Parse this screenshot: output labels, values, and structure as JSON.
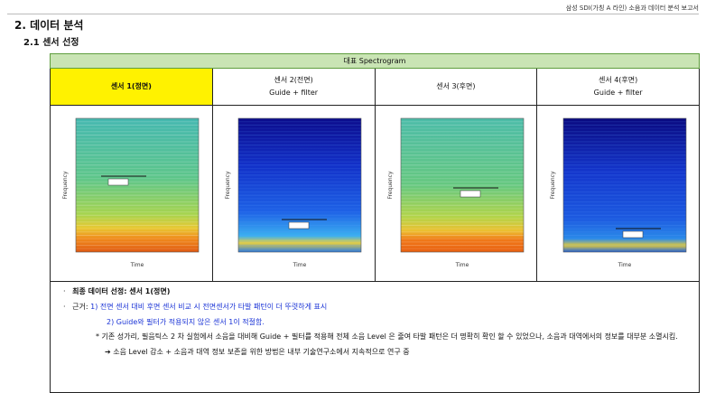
{
  "header": {
    "note": "삼성 SDI(가칭 A 라인) 소음과 데이터 분석 보고서"
  },
  "title": "2. 데이터 분석",
  "subtitle": "2.1 센서 선정",
  "table": {
    "caption": "대표 Spectrogram",
    "sensors": [
      {
        "name": "센서 1(정면)"
      },
      {
        "name": "센서 2(전면)",
        "sub": "Guide + filter"
      },
      {
        "name": "센서 3(후면)"
      },
      {
        "name": "센서 4(후면)",
        "sub": "Guide + filter"
      }
    ],
    "axis_x": "Time",
    "axis_y": "Frequency"
  },
  "conclusion": {
    "selection": "최종 데이터 선정: 센서 1(정면)",
    "reason_label": "근거:",
    "reasons": [
      "1) 전면 센서 대비 후면 센서 비교 시 전면센서가 타발 패턴이 더 뚜렷하게 표시",
      "2) Guide와 필터가 적용되지 않은 센서 1이 적절함."
    ],
    "note": "* 기존 성가리, 필음틱스 2 차 실험에서 소음을 대비해 Guide + 필터를 적용해 전체 소음 Level 은 줄여 타발 패턴은 더 명확히 확인 할 수 있었으나, 소음과 대역에서의 정보를 대부분 소멸시킴.",
    "arrow": "➔ 소음 Level 감소 + 소음과 대역 정보 보존을 위한 방법은 내부 기술연구소에서 지속적으로 연구 중"
  }
}
